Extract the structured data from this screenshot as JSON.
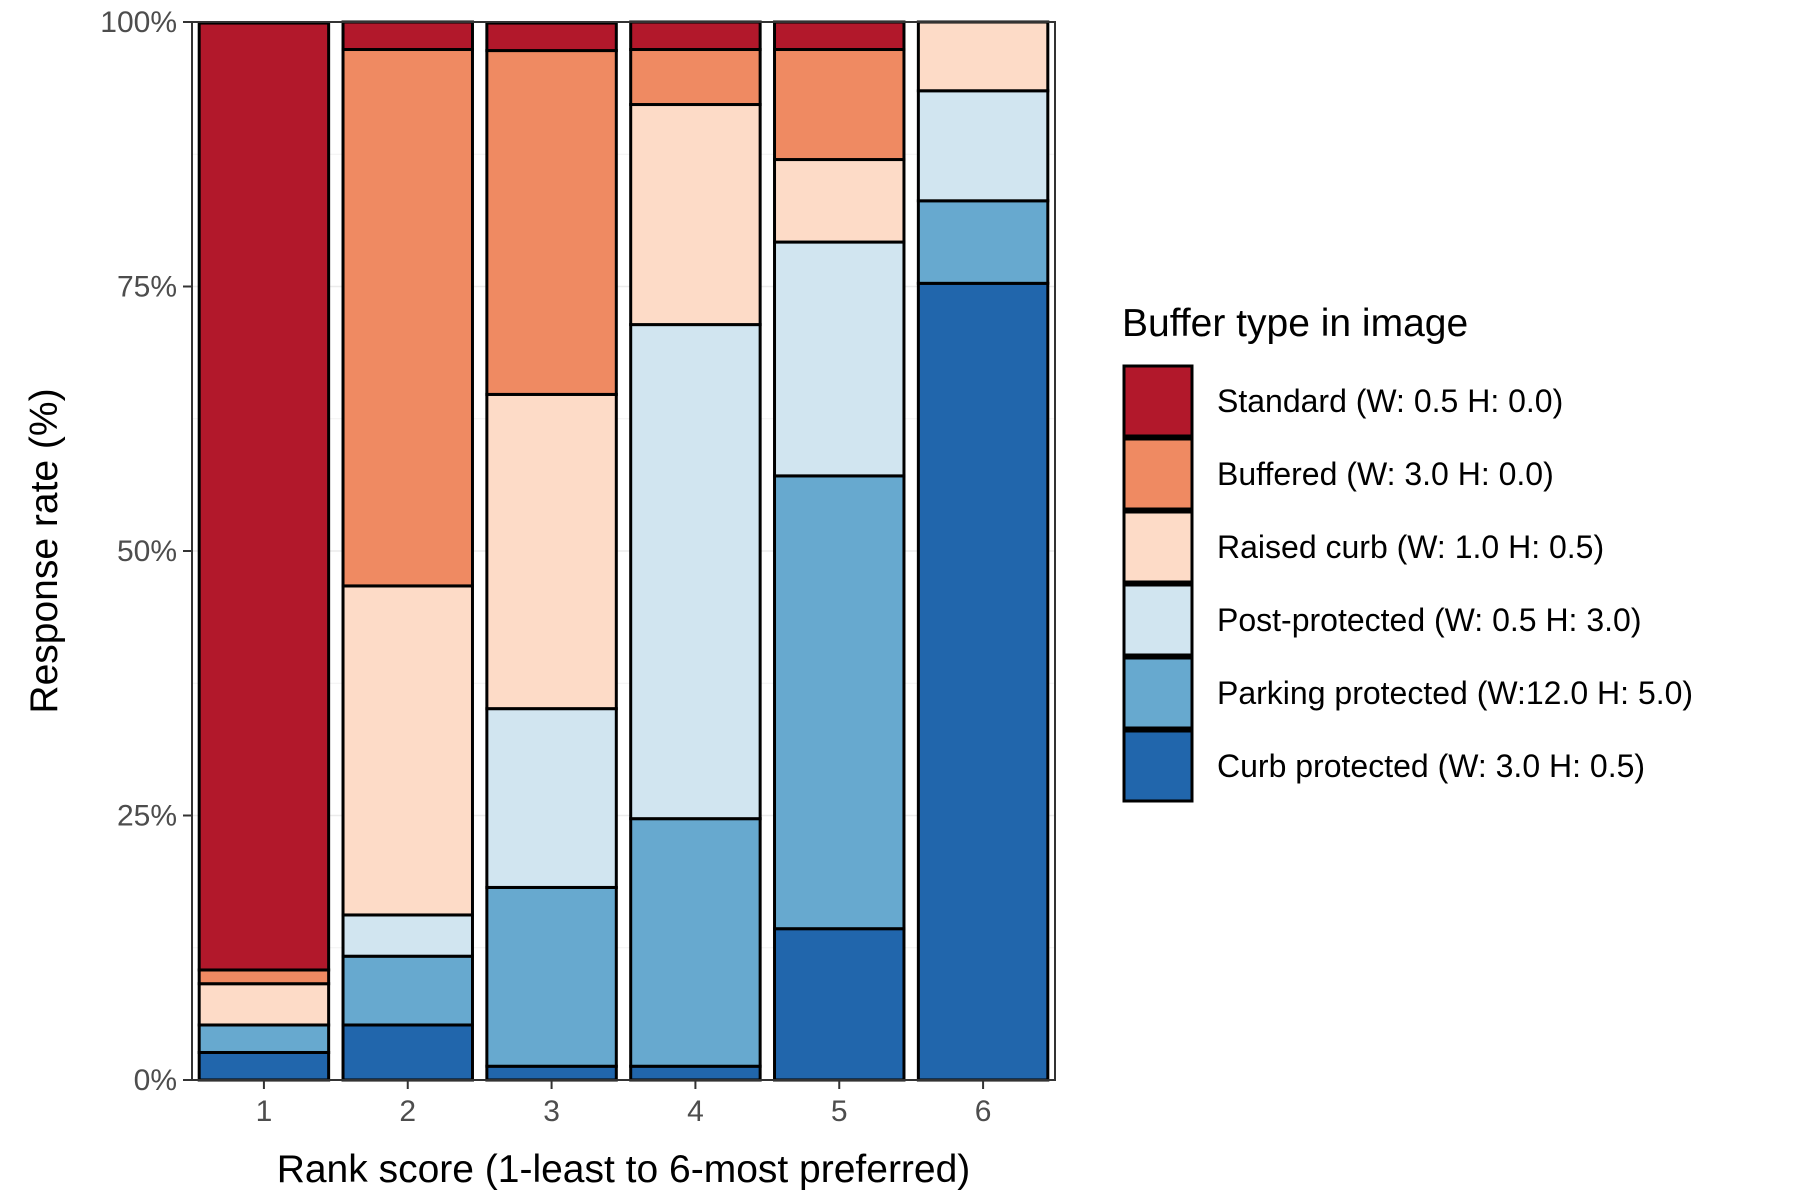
{
  "chart_data": {
    "type": "bar",
    "stacked": true,
    "percent_axis": true,
    "title": "",
    "xlabel": "Rank score (1-least to 6-most preferred)",
    "ylabel": "Response rate (%)",
    "ylim": [
      0,
      100
    ],
    "y_ticks": [
      "0%",
      "25%",
      "50%",
      "75%",
      "100%"
    ],
    "y_tick_values": [
      0,
      25,
      50,
      75,
      100
    ],
    "categories": [
      "1",
      "2",
      "3",
      "4",
      "5",
      "6"
    ],
    "grid": true,
    "legend": {
      "title": "Buffer type in image",
      "position": "right"
    },
    "series": [
      {
        "name": "Standard (W: 0.5 H: 0.0)",
        "color": "#B2182B",
        "values": [
          89.5,
          2.6,
          2.6,
          2.6,
          2.6,
          0
        ]
      },
      {
        "name": "Buffered (W: 3.0 H: 0.0)",
        "color": "#EF8A62",
        "values": [
          1.3,
          50.7,
          32.5,
          5.2,
          10.4,
          0
        ]
      },
      {
        "name": "Raised curb (W: 1.0 H: 0.5)",
        "color": "#FDDBC7",
        "values": [
          3.9,
          31.1,
          29.7,
          20.8,
          7.8,
          6.5
        ]
      },
      {
        "name": "Post-protected (W: 0.5 H: 3.0)",
        "color": "#D1E5F0",
        "values": [
          0,
          3.9,
          16.9,
          46.7,
          22.1,
          10.4
        ]
      },
      {
        "name": "Parking protected (W:12.0 H: 5.0)",
        "color": "#67A9CF",
        "values": [
          2.6,
          6.5,
          16.9,
          23.4,
          42.8,
          7.8
        ]
      },
      {
        "name": "Curb protected (W: 3.0 H: 0.5)",
        "color": "#2166AC",
        "values": [
          2.6,
          5.2,
          1.3,
          1.3,
          14.3,
          75.3
        ]
      }
    ]
  }
}
